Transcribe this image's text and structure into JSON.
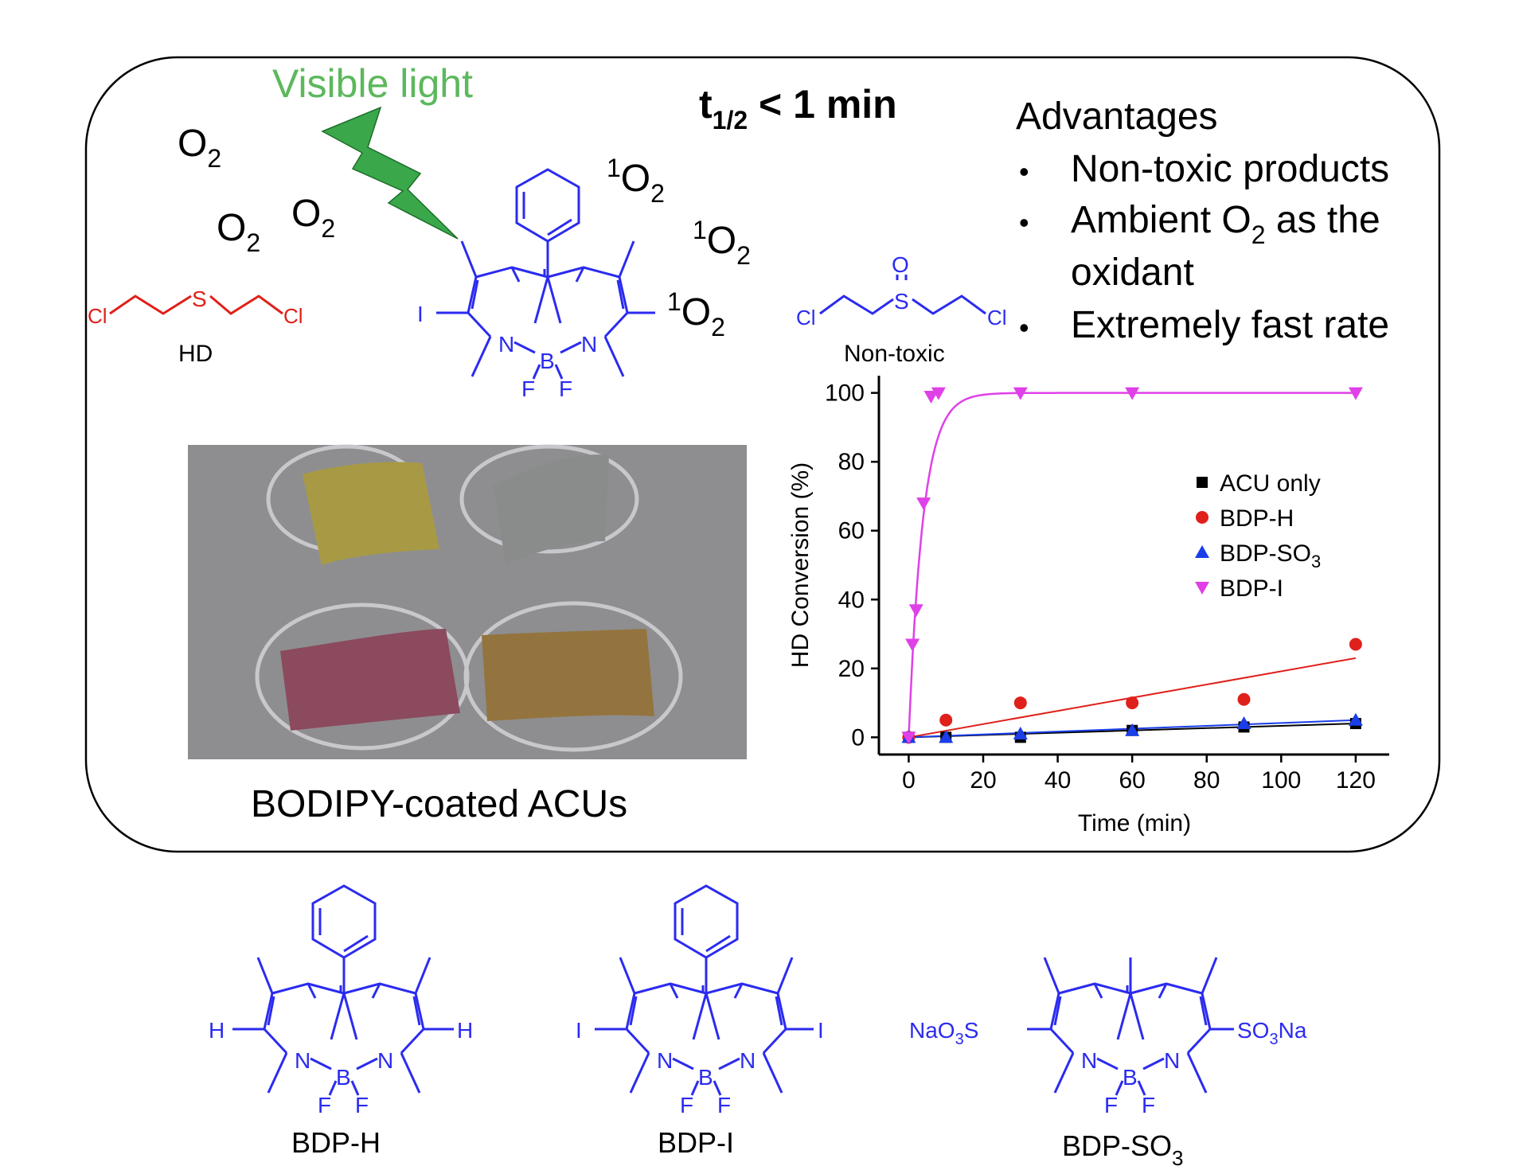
{
  "header": {
    "visible_light": "Visible light",
    "half_life_main": "t",
    "half_life_sub": "1/2",
    "half_life_rest": " < 1 min"
  },
  "oxygen": {
    "o2_base": "O",
    "o2_sub": "2",
    "singlet_sup": "1",
    "singlet_base": "O",
    "singlet_sub": "2"
  },
  "molecules": {
    "hd_label": "HD",
    "cl": "Cl",
    "s": "S",
    "o": "O",
    "non_toxic_label": "Non-toxic",
    "atom_n": "N",
    "atom_b": "B",
    "atom_f": "F",
    "atom_i": "I",
    "atom_h": "H",
    "naso3": {
      "pre": "NaO",
      "sub": "3",
      "post": "S"
    },
    "so3na": {
      "pre": "SO",
      "sub": "3",
      "post": "Na"
    }
  },
  "advantages": {
    "title": "Advantages",
    "items": [
      "Non-toxic products",
      "Ambient O",
      "2",
      " as the",
      "oxidant",
      "Extremely fast rate"
    ],
    "bullet": "•"
  },
  "photo": {
    "caption": "BODIPY-coated ACUs",
    "colors": {
      "background": "#8e8e90",
      "fabric_yellow": "#a89a44",
      "fabric_gray": "#8a8c8c",
      "fabric_red": "#8c4a5e",
      "fabric_olive": "#94743e"
    }
  },
  "bottom_labels": {
    "bdp_h": "BDP-H",
    "bdp_i": "BDP-I",
    "bdp_so3": {
      "pre": "BDP-SO",
      "sub": "3"
    }
  },
  "colors": {
    "blue": "#2b2bf0",
    "red": "#e0201a",
    "green": "#5cb85c",
    "bolt": "#3aa84a",
    "magenta": "#e040e8",
    "black": "#000000"
  },
  "chart_data": {
    "type": "scatter",
    "xlabel": "Time (min)",
    "ylabel": "HD Conversion (%)",
    "xlim": [
      -8,
      129
    ],
    "ylim": [
      -5,
      105
    ],
    "xticks": [
      0,
      20,
      40,
      60,
      80,
      100,
      120
    ],
    "yticks": [
      0,
      20,
      40,
      60,
      80,
      100
    ],
    "legend_position": "center-right",
    "series": [
      {
        "name": "ACU only",
        "marker": "square",
        "color": "#000000",
        "x": [
          0,
          10,
          30,
          60,
          90,
          120
        ],
        "y": [
          0,
          0,
          0,
          2,
          3,
          4
        ],
        "fit": "linear",
        "fit_color": "#000000",
        "fit_y": [
          0,
          4
        ]
      },
      {
        "name": "BDP-H",
        "marker": "circle",
        "color": "#e0201a",
        "x": [
          0,
          10,
          30,
          60,
          90,
          120
        ],
        "y": [
          0,
          5,
          10,
          10,
          11,
          27
        ],
        "fit": "linear",
        "fit_color": "#e0201a",
        "fit_y": [
          0,
          23
        ]
      },
      {
        "name": "BDP-SO3",
        "legend_pre": "BDP-SO",
        "legend_sub": "3",
        "marker": "triangle-up",
        "color": "#1a3ee8",
        "x": [
          0,
          10,
          30,
          60,
          90,
          120
        ],
        "y": [
          0,
          0,
          1,
          2,
          4,
          5
        ],
        "fit": "linear",
        "fit_color": "#1a3ee8",
        "fit_y": [
          0,
          5
        ]
      },
      {
        "name": "BDP-I",
        "marker": "triangle-down",
        "color": "#e040e8",
        "x": [
          0,
          1,
          2,
          4,
          6,
          8,
          30,
          60,
          120
        ],
        "y": [
          0,
          27,
          37,
          68,
          99,
          100,
          100,
          100,
          100
        ],
        "fit": "first-order",
        "fit_color": "#e040e8",
        "fit_k": 0.26
      }
    ]
  }
}
